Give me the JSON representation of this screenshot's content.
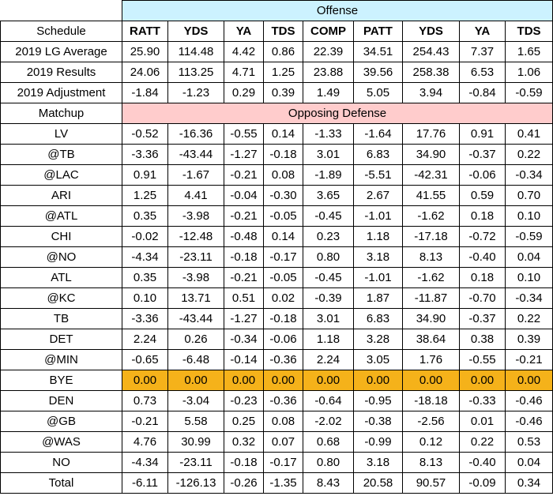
{
  "offense_label": "Offense",
  "defense_label": "Opposing Defense",
  "schedule_label": "Schedule",
  "matchup_label": "Matchup",
  "columns": [
    "RATT",
    "YDS",
    "YA",
    "TDS",
    "COMP",
    "PATT",
    "YDS",
    "YA",
    "TDS"
  ],
  "summary_rows": [
    {
      "label": "2019 LG Average",
      "values": [
        "25.90",
        "114.48",
        "4.42",
        "0.86",
        "22.39",
        "34.51",
        "254.43",
        "7.37",
        "1.65"
      ]
    },
    {
      "label": "2019 Results",
      "values": [
        "24.06",
        "113.25",
        "4.71",
        "1.25",
        "23.88",
        "39.56",
        "258.38",
        "6.53",
        "1.06"
      ]
    },
    {
      "label": "2019 Adjustment",
      "values": [
        "-1.84",
        "-1.23",
        "0.29",
        "0.39",
        "1.49",
        "5.05",
        "3.94",
        "-0.84",
        "-0.59"
      ]
    }
  ],
  "matchups": [
    {
      "label": "LV",
      "values": [
        "-0.52",
        "-16.36",
        "-0.55",
        "0.14",
        "-1.33",
        "-1.64",
        "17.76",
        "0.91",
        "0.41"
      ]
    },
    {
      "label": "@TB",
      "values": [
        "-3.36",
        "-43.44",
        "-1.27",
        "-0.18",
        "3.01",
        "6.83",
        "34.90",
        "-0.37",
        "0.22"
      ]
    },
    {
      "label": "@LAC",
      "values": [
        "0.91",
        "-1.67",
        "-0.21",
        "0.08",
        "-1.89",
        "-5.51",
        "-42.31",
        "-0.06",
        "-0.34"
      ]
    },
    {
      "label": "ARI",
      "values": [
        "1.25",
        "4.41",
        "-0.04",
        "-0.30",
        "3.65",
        "2.67",
        "41.55",
        "0.59",
        "0.70"
      ]
    },
    {
      "label": "@ATL",
      "values": [
        "0.35",
        "-3.98",
        "-0.21",
        "-0.05",
        "-0.45",
        "-1.01",
        "-1.62",
        "0.18",
        "0.10"
      ]
    },
    {
      "label": "CHI",
      "values": [
        "-0.02",
        "-12.48",
        "-0.48",
        "0.14",
        "0.23",
        "1.18",
        "-17.18",
        "-0.72",
        "-0.59"
      ]
    },
    {
      "label": "@NO",
      "values": [
        "-4.34",
        "-23.11",
        "-0.18",
        "-0.17",
        "0.80",
        "3.18",
        "8.13",
        "-0.40",
        "0.04"
      ]
    },
    {
      "label": "ATL",
      "values": [
        "0.35",
        "-3.98",
        "-0.21",
        "-0.05",
        "-0.45",
        "-1.01",
        "-1.62",
        "0.18",
        "0.10"
      ]
    },
    {
      "label": "@KC",
      "values": [
        "0.10",
        "13.71",
        "0.51",
        "0.02",
        "-0.39",
        "1.87",
        "-11.87",
        "-0.70",
        "-0.34"
      ]
    },
    {
      "label": "TB",
      "values": [
        "-3.36",
        "-43.44",
        "-1.27",
        "-0.18",
        "3.01",
        "6.83",
        "34.90",
        "-0.37",
        "0.22"
      ]
    },
    {
      "label": "DET",
      "values": [
        "2.24",
        "0.26",
        "-0.34",
        "-0.06",
        "1.18",
        "3.28",
        "38.64",
        "0.38",
        "0.39"
      ]
    },
    {
      "label": "@MIN",
      "values": [
        "-0.65",
        "-6.48",
        "-0.14",
        "-0.36",
        "2.24",
        "3.05",
        "1.76",
        "-0.55",
        "-0.21"
      ]
    },
    {
      "label": "BYE",
      "values": [
        "0.00",
        "0.00",
        "0.00",
        "0.00",
        "0.00",
        "0.00",
        "0.00",
        "0.00",
        "0.00"
      ]
    },
    {
      "label": "DEN",
      "values": [
        "0.73",
        "-3.04",
        "-0.23",
        "-0.36",
        "-0.64",
        "-0.95",
        "-18.18",
        "-0.33",
        "-0.46"
      ]
    },
    {
      "label": "@GB",
      "values": [
        "-0.21",
        "5.58",
        "0.25",
        "0.08",
        "-2.02",
        "-0.38",
        "-2.56",
        "0.01",
        "-0.46"
      ]
    },
    {
      "label": "@WAS",
      "values": [
        "4.76",
        "30.99",
        "0.32",
        "0.07",
        "0.68",
        "-0.99",
        "0.12",
        "0.22",
        "0.53"
      ]
    },
    {
      "label": "NO",
      "values": [
        "-4.34",
        "-23.11",
        "-0.18",
        "-0.17",
        "0.80",
        "3.18",
        "8.13",
        "-0.40",
        "0.04"
      ]
    },
    {
      "label": "Total",
      "values": [
        "-6.11",
        "-126.13",
        "-0.26",
        "-1.35",
        "8.43",
        "20.58",
        "90.57",
        "-0.09",
        "0.34"
      ]
    }
  ],
  "colors": {
    "offense_banner": "#ccf2ff",
    "defense_banner": "#ffcccc",
    "bye_highlight": "#f5b21a"
  }
}
